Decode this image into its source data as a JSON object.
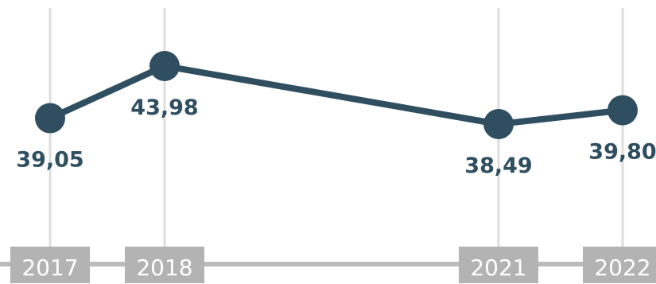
{
  "chart_data": {
    "type": "line",
    "categories": [
      "2017",
      "2018",
      "2021",
      "2022"
    ],
    "x": [
      2017,
      2018,
      2021,
      2022
    ],
    "values": [
      39.05,
      43.98,
      38.49,
      39.8
    ],
    "value_labels": [
      "39,05",
      "43,98",
      "38,49",
      "39,80"
    ],
    "title": "",
    "xlabel": "",
    "ylabel": "",
    "grid": true,
    "legend": "none"
  },
  "colors": {
    "line": "#2f4f60",
    "marker": "#2f4f60",
    "value_text": "#2f4f60",
    "gridline": "#dddddd",
    "axis_bar": "#bbbbbb",
    "year_box": "#b3b3b3",
    "year_text": "#ffffff"
  }
}
